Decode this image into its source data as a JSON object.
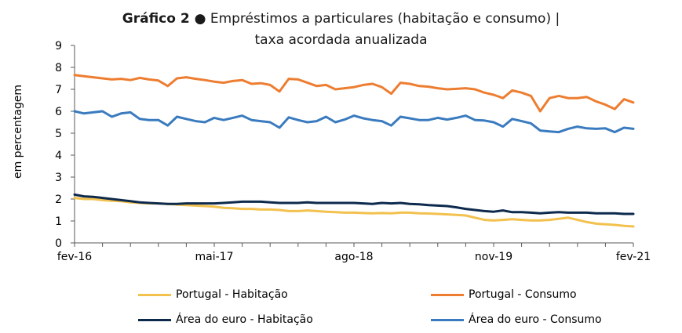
{
  "title": {
    "bold_part": "Gráfico 2 ●",
    "rest_part": " Empréstimos a particulares (habitação e consumo) |",
    "line2": "taxa acordada anualizada"
  },
  "chart_data": {
    "type": "line",
    "title": "Gráfico 2 ● Empréstimos a particulares (habitação e consumo) | taxa acordada anualizada",
    "ylabel": "em percentagem",
    "xlabel": "",
    "ylim": [
      0,
      9
    ],
    "yticks": [
      "0",
      "1",
      "2",
      "3",
      "4",
      "5",
      "6",
      "7",
      "8",
      "9"
    ],
    "xtick_labels": [
      "fev-16",
      "mai-17",
      "ago-18",
      "nov-19",
      "fev-21"
    ],
    "xtick_index": [
      0,
      15,
      30,
      45,
      60
    ],
    "grid": false,
    "legend_position": "bottom",
    "series": [
      {
        "name": "Portugal - Habitação",
        "color": "#f2c14e",
        "values": [
          2.05,
          2.0,
          2.0,
          1.95,
          1.92,
          1.9,
          1.85,
          1.82,
          1.8,
          1.8,
          1.78,
          1.75,
          1.72,
          1.7,
          1.68,
          1.65,
          1.6,
          1.58,
          1.55,
          1.55,
          1.52,
          1.52,
          1.5,
          1.45,
          1.45,
          1.48,
          1.45,
          1.42,
          1.4,
          1.38,
          1.38,
          1.36,
          1.35,
          1.36,
          1.35,
          1.38,
          1.38,
          1.35,
          1.34,
          1.32,
          1.3,
          1.28,
          1.25,
          1.15,
          1.05,
          1.02,
          1.05,
          1.08,
          1.05,
          1.02,
          1.02,
          1.05,
          1.1,
          1.15,
          1.05,
          0.95,
          0.88,
          0.85,
          0.82,
          0.78,
          0.75
        ]
      },
      {
        "name": "Portugal - Consumo",
        "color": "#ed7d31",
        "values": [
          7.65,
          7.6,
          7.55,
          7.5,
          7.45,
          7.48,
          7.42,
          7.52,
          7.45,
          7.4,
          7.15,
          7.5,
          7.55,
          7.48,
          7.42,
          7.35,
          7.3,
          7.38,
          7.42,
          7.25,
          7.28,
          7.2,
          6.9,
          7.48,
          7.45,
          7.3,
          7.15,
          7.2,
          7.0,
          7.05,
          7.1,
          7.2,
          7.25,
          7.1,
          6.8,
          7.3,
          7.25,
          7.15,
          7.12,
          7.05,
          7.0,
          7.02,
          7.05,
          7.0,
          6.85,
          6.75,
          6.6,
          6.95,
          6.85,
          6.7,
          6.0,
          6.6,
          6.7,
          6.6,
          6.6,
          6.65,
          6.45,
          6.3,
          6.1,
          6.55,
          6.4
        ]
      },
      {
        "name": "Área do euro - Habitação",
        "color": "#0d2a4d",
        "values": [
          2.2,
          2.12,
          2.1,
          2.05,
          2.0,
          1.95,
          1.9,
          1.85,
          1.82,
          1.8,
          1.78,
          1.78,
          1.8,
          1.8,
          1.8,
          1.8,
          1.82,
          1.85,
          1.88,
          1.88,
          1.88,
          1.85,
          1.82,
          1.82,
          1.82,
          1.85,
          1.82,
          1.82,
          1.82,
          1.82,
          1.82,
          1.8,
          1.78,
          1.82,
          1.8,
          1.82,
          1.78,
          1.76,
          1.72,
          1.7,
          1.68,
          1.62,
          1.55,
          1.5,
          1.45,
          1.42,
          1.48,
          1.4,
          1.4,
          1.38,
          1.35,
          1.38,
          1.4,
          1.38,
          1.38,
          1.38,
          1.35,
          1.35,
          1.35,
          1.32,
          1.32
        ]
      },
      {
        "name": "Área do euro - Consumo",
        "color": "#3a7bbf",
        "values": [
          6.0,
          5.9,
          5.95,
          6.0,
          5.75,
          5.9,
          5.95,
          5.65,
          5.6,
          5.6,
          5.35,
          5.75,
          5.65,
          5.55,
          5.5,
          5.7,
          5.6,
          5.7,
          5.8,
          5.6,
          5.55,
          5.5,
          5.25,
          5.72,
          5.6,
          5.5,
          5.55,
          5.75,
          5.5,
          5.62,
          5.8,
          5.68,
          5.6,
          5.55,
          5.35,
          5.75,
          5.68,
          5.6,
          5.6,
          5.7,
          5.62,
          5.7,
          5.8,
          5.6,
          5.58,
          5.5,
          5.3,
          5.65,
          5.55,
          5.45,
          5.12,
          5.08,
          5.05,
          5.2,
          5.3,
          5.22,
          5.2,
          5.22,
          5.05,
          5.25,
          5.2
        ]
      }
    ]
  }
}
